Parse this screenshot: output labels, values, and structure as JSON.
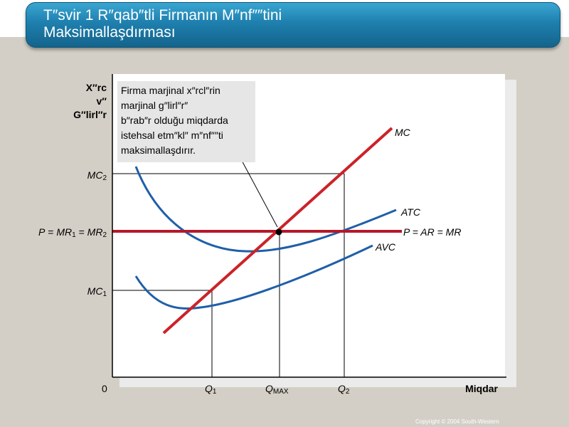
{
  "title": {
    "line1": "T″svir 1 R″qab″tli Firmanın M″nf″″tini",
    "line2": "Maksimallaşdırması"
  },
  "axes": {
    "y_label_line1": "X″rc",
    "y_label_line2": "v″",
    "y_label_line3": "G″lirl″r",
    "x_label": "Miqdar",
    "origin": "0"
  },
  "y_ticks": {
    "mc2": "MC",
    "mc2_sub": "2",
    "price_p": "P",
    "price_eq": " = ",
    "price_mr1": "MR",
    "price_mr1_sub": "1",
    "price_mr2": "MR",
    "price_mr2_sub": "2",
    "mc1": "MC",
    "mc1_sub": "1"
  },
  "x_ticks": {
    "q1": "Q",
    "q1_sub": "1",
    "qmax": "Q",
    "qmax_sub": "MAX",
    "q2": "Q",
    "q2_sub": "2"
  },
  "curves": {
    "mc": "MC",
    "atc": "ATC",
    "avc": "AVC",
    "price_line": "P = AR = MR"
  },
  "callout": {
    "line1": "Firma marjinal x″rcl″rin",
    "line2": "marjinal g″lirl″r″",
    "line3": "b″rab″r olduğu miqdarda",
    "line4": "istehsal etm″kl″ m″nf″″ti",
    "line5": "maksimallaşdırır."
  },
  "copyright": "Copyright © 2004 South-Western",
  "colors": {
    "title_bar": "#1e7fae",
    "background": "#d4cfc6",
    "mc_curve": "#cc2229",
    "price_line": "#b5182a",
    "cost_curves": "#1f5fa8"
  }
}
